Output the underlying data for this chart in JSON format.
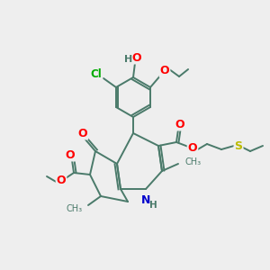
{
  "bg_color": "#eeeeee",
  "bond_color": "#4a7a6a",
  "bond_width": 1.4,
  "atom_colors": {
    "O": "#ff0000",
    "N": "#0000cc",
    "Cl": "#00aa00",
    "S": "#bbbb00",
    "H": "#4a7a6a",
    "C": "#4a7a6a"
  },
  "font_size": 8.5,
  "fig_width": 3.0,
  "fig_height": 3.0,
  "dpi": 100
}
